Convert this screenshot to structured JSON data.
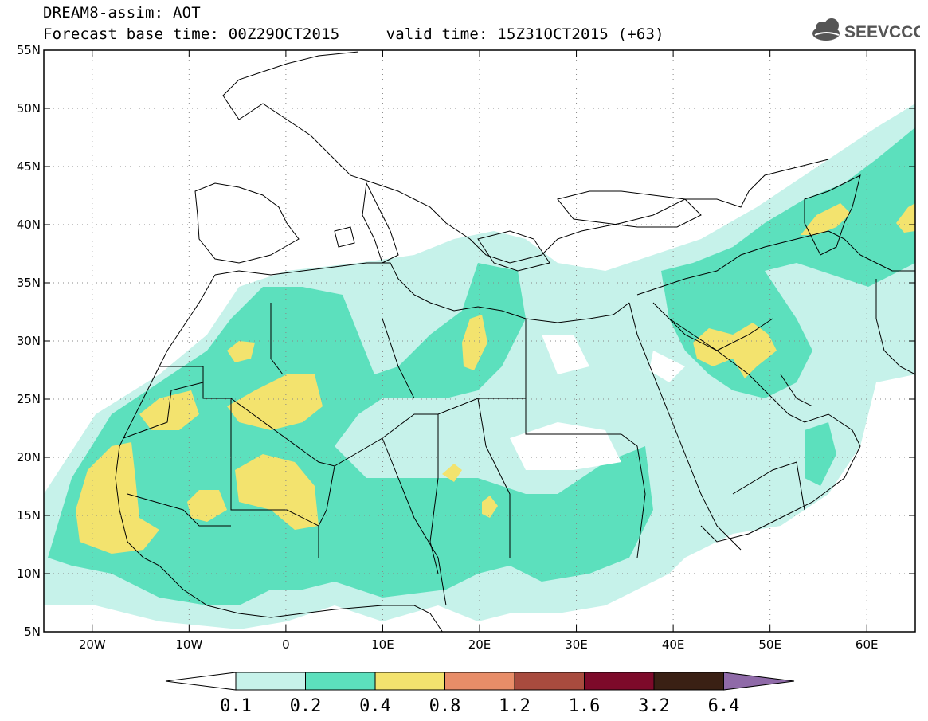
{
  "header": {
    "title": "DREAM8-assim: AOT",
    "subtitle": "Forecast base time: 00Z29OCT2015     valid time: 15Z31OCT2015 (+63)"
  },
  "logo": {
    "text": "SEEVCCC",
    "icon": "cloud-icon"
  },
  "map": {
    "lat_labels": [
      "55N",
      "50N",
      "45N",
      "40N",
      "35N",
      "30N",
      "25N",
      "20N",
      "15N",
      "10N",
      "5N"
    ],
    "lon_labels": [
      "20W",
      "10W",
      "0",
      "10E",
      "20E",
      "30E",
      "40E",
      "50E",
      "60E"
    ],
    "lat_range": [
      5,
      55
    ],
    "lon_range": [
      -25,
      65
    ],
    "grid": "dotted"
  },
  "colorbar": {
    "labels": [
      "0.1",
      "0.2",
      "0.4",
      "0.8",
      "1.2",
      "1.6",
      "3.2",
      "6.4"
    ],
    "colors": [
      "#ffffff",
      "#c6f2ea",
      "#5ce0bd",
      "#f3e36e",
      "#e88d68",
      "#a84b3e",
      "#7d0a2a",
      "#3a2014",
      "#8f6aa8"
    ]
  },
  "chart_data": {
    "type": "heatmap",
    "title": "DREAM8-assim: AOT",
    "legend": "bottom",
    "levels": [
      0.1,
      0.2,
      0.4,
      0.8,
      1.2,
      1.6,
      3.2,
      6.4
    ]
  }
}
